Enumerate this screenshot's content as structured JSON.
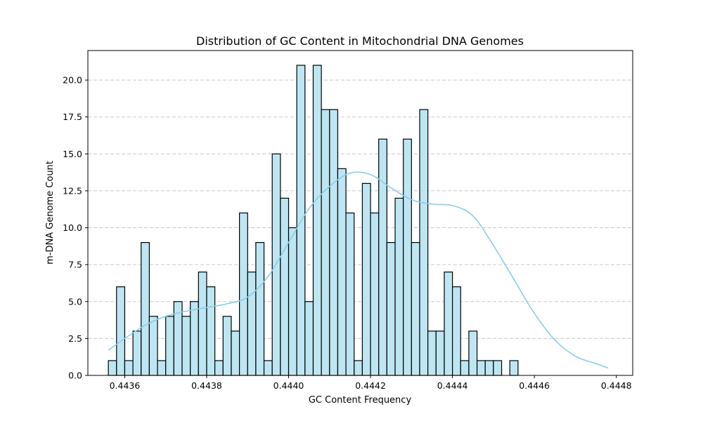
{
  "chart_data": {
    "type": "bar",
    "title": "Distribution of GC Content in Mitochondrial DNA Genomes",
    "xlabel": "GC Content Frequency",
    "ylabel": "m-DNA Genome Count",
    "xlim": [
      0.44351,
      0.44484
    ],
    "ylim": [
      0,
      22
    ],
    "grid": {
      "axis": "y",
      "style": "dashed"
    },
    "bar_fill": "#bde6f2",
    "bar_edge": "#000000",
    "kde_color": "#87ceeb",
    "bin_start": 0.44356,
    "bin_width": 2e-05,
    "values": [
      1,
      6,
      1,
      3,
      9,
      4,
      1,
      4,
      5,
      4,
      5,
      7,
      6,
      1,
      4,
      3,
      11,
      7,
      9,
      1,
      15,
      12,
      10,
      21,
      5,
      21,
      18,
      18,
      14,
      11,
      1,
      13,
      11,
      16,
      9,
      12,
      16,
      9,
      18,
      3,
      3,
      7,
      6,
      1,
      3,
      1,
      1,
      1,
      0,
      1
    ],
    "x_ticks": [
      0.4436,
      0.4438,
      0.444,
      0.4442,
      0.4444,
      0.4446,
      0.4448
    ],
    "x_tick_labels": [
      "0.4436",
      "0.4438",
      "0.4440",
      "0.4442",
      "0.4444",
      "0.4446",
      "0.4448"
    ],
    "y_ticks": [
      0,
      2.5,
      5,
      7.5,
      10,
      12.5,
      15,
      17.5,
      20
    ],
    "y_tick_labels": [
      "0.0",
      "2.5",
      "5.0",
      "7.5",
      "10.0",
      "12.5",
      "15.0",
      "17.5",
      "20.0"
    ],
    "kde": {
      "x": [
        0.44356,
        0.4436,
        0.44365,
        0.4437,
        0.44375,
        0.4438,
        0.44385,
        0.4439,
        0.44395,
        0.444,
        0.44405,
        0.4441,
        0.44415,
        0.4442,
        0.44425,
        0.4443,
        0.44435,
        0.4444,
        0.44445,
        0.4445,
        0.44455,
        0.4446,
        0.44465,
        0.4447,
        0.44475,
        0.44478
      ],
      "y": [
        1.7,
        2.5,
        3.4,
        4.0,
        4.35,
        4.6,
        4.85,
        5.3,
        6.7,
        9.0,
        11.3,
        12.8,
        13.7,
        13.6,
        12.7,
        11.9,
        11.6,
        11.5,
        10.8,
        8.8,
        6.5,
        4.2,
        2.4,
        1.3,
        0.8,
        0.5
      ]
    }
  }
}
